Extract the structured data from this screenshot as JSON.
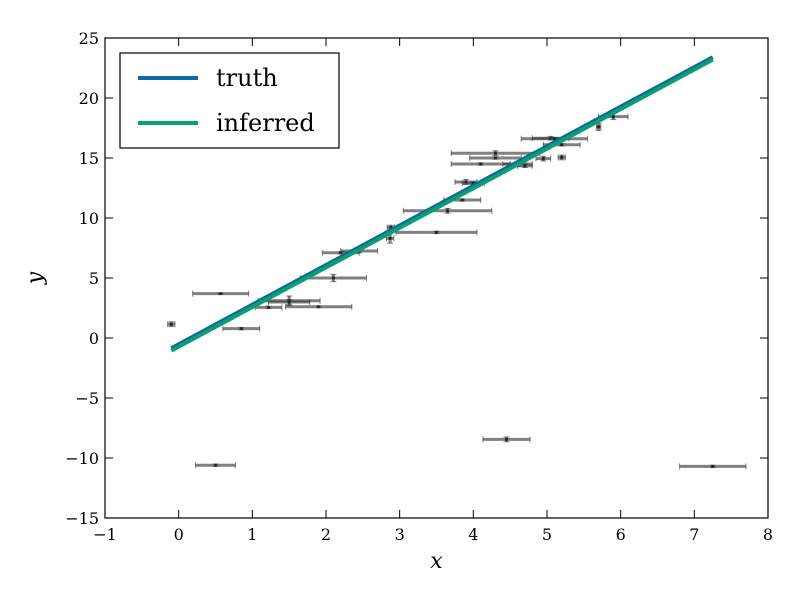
{
  "chart_data": {
    "type": "scatter",
    "title": "",
    "xlabel": "x",
    "ylabel": "y",
    "xlim": [
      -1,
      8
    ],
    "ylim": [
      -15,
      25
    ],
    "xticks": [
      -1,
      0,
      1,
      2,
      3,
      4,
      5,
      6,
      7,
      8
    ],
    "yticks": [
      -15,
      -10,
      -5,
      0,
      5,
      10,
      15,
      20,
      25
    ],
    "xtick_labels": [
      "−1",
      "0",
      "1",
      "2",
      "3",
      "4",
      "5",
      "6",
      "7",
      "8"
    ],
    "ytick_labels": [
      "−15",
      "−10",
      "−5",
      "0",
      "5",
      "10",
      "15",
      "20",
      "25"
    ],
    "grid": false,
    "legend": {
      "placement": "top-left",
      "entries": [
        {
          "label": "truth",
          "color": "#0a6aa1"
        },
        {
          "label": "inferred",
          "color": "#0a9e73"
        }
      ]
    },
    "lines": [
      {
        "label": "truth",
        "color": "#0a6aa1",
        "x": [
          -0.1,
          7.25
        ],
        "y": [
          -0.85,
          23.4
        ]
      },
      {
        "label": "inferred",
        "color": "#0a9e73",
        "x": [
          -0.1,
          7.25
        ],
        "y": [
          -1.05,
          23.2
        ]
      }
    ],
    "points": [
      {
        "x": -0.1,
        "y": 1.15,
        "xerr": 0.05,
        "yerr": 0.2
      },
      {
        "x": 0.57,
        "y": 3.7,
        "xerr": 0.38,
        "yerr": 0.05
      },
      {
        "x": 0.85,
        "y": 0.78,
        "xerr": 0.25,
        "yerr": 0.1
      },
      {
        "x": 0.5,
        "y": -10.6,
        "xerr": 0.27,
        "yerr": 0.1
      },
      {
        "x": 1.22,
        "y": 2.55,
        "xerr": 0.18,
        "yerr": 0.1
      },
      {
        "x": 1.5,
        "y": 3.1,
        "xerr": 0.42,
        "yerr": 0.4
      },
      {
        "x": 1.5,
        "y": 3.0,
        "xerr": 0.28,
        "yerr": 0.2
      },
      {
        "x": 1.9,
        "y": 2.6,
        "xerr": 0.45,
        "yerr": 0.08
      },
      {
        "x": 2.1,
        "y": 5.0,
        "xerr": 0.45,
        "yerr": 0.3
      },
      {
        "x": 2.2,
        "y": 7.1,
        "xerr": 0.25,
        "yerr": 0.1
      },
      {
        "x": 2.45,
        "y": 7.25,
        "xerr": 0.25,
        "yerr": 0.15
      },
      {
        "x": 2.87,
        "y": 8.3,
        "xerr": 0.05,
        "yerr": 0.4
      },
      {
        "x": 2.88,
        "y": 9.2,
        "xerr": 0.05,
        "yerr": 0.2
      },
      {
        "x": 3.5,
        "y": 8.8,
        "xerr": 0.55,
        "yerr": 0.1
      },
      {
        "x": 3.65,
        "y": 10.6,
        "xerr": 0.6,
        "yerr": 0.2
      },
      {
        "x": 3.85,
        "y": 11.5,
        "xerr": 0.25,
        "yerr": 0.1
      },
      {
        "x": 3.9,
        "y": 13.0,
        "xerr": 0.15,
        "yerr": 0.2
      },
      {
        "x": 4.0,
        "y": 12.9,
        "xerr": 0.15,
        "yerr": 0.1
      },
      {
        "x": 4.1,
        "y": 14.5,
        "xerr": 0.4,
        "yerr": 0.1
      },
      {
        "x": 4.3,
        "y": 15.4,
        "xerr": 0.6,
        "yerr": 0.2
      },
      {
        "x": 4.3,
        "y": 15.0,
        "xerr": 0.35,
        "yerr": 0.1
      },
      {
        "x": 4.45,
        "y": -8.45,
        "xerr": 0.32,
        "yerr": 0.2
      },
      {
        "x": 4.6,
        "y": 14.5,
        "xerr": 0.2,
        "yerr": 0.2
      },
      {
        "x": 4.7,
        "y": 14.35,
        "xerr": 0.1,
        "yerr": 0.15
      },
      {
        "x": 4.95,
        "y": 14.95,
        "xerr": 0.1,
        "yerr": 0.2
      },
      {
        "x": 5.05,
        "y": 16.65,
        "xerr": 0.25,
        "yerr": 0.15
      },
      {
        "x": 5.2,
        "y": 16.1,
        "xerr": 0.25,
        "yerr": 0.1
      },
      {
        "x": 5.2,
        "y": 15.05,
        "xerr": 0.05,
        "yerr": 0.2
      },
      {
        "x": 5.1,
        "y": 16.6,
        "xerr": 0.45,
        "yerr": 0.1
      },
      {
        "x": 5.7,
        "y": 17.6,
        "xerr": 0.03,
        "yerr": 0.3
      },
      {
        "x": 5.9,
        "y": 18.45,
        "xerr": 0.2,
        "yerr": 0.25
      },
      {
        "x": 7.25,
        "y": -10.7,
        "xerr": 0.45,
        "yerr": 0.1
      }
    ]
  }
}
